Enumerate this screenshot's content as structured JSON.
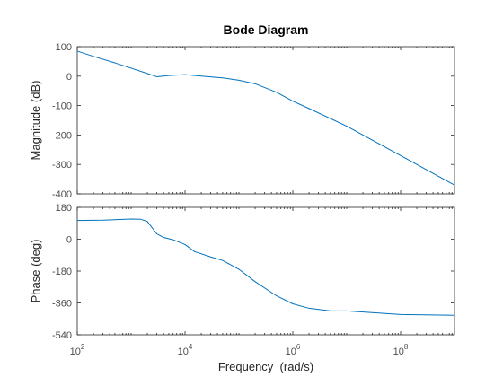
{
  "chart_data": {
    "type": "line",
    "title": "Bode Diagram",
    "xlabel": "Frequency  (rad/s)",
    "xscale": "log",
    "xlim": [
      100,
      1000000000
    ],
    "x_ticks": [
      {
        "base": "10",
        "exp": "2"
      },
      {
        "base": "10",
        "exp": "4"
      },
      {
        "base": "10",
        "exp": "6"
      },
      {
        "base": "10",
        "exp": "8"
      }
    ],
    "line_color": "#0072bd",
    "axes_color": "#262626",
    "tick_label_color": "#4d4d4d",
    "grid": false,
    "panels": [
      {
        "name": "magnitude",
        "ylabel": "Magnitude (dB)",
        "ylim": [
          -400,
          100
        ],
        "y_ticks": [
          "100",
          "0",
          "-100",
          "-200",
          "-300",
          "-400"
        ],
        "series": {
          "x": [
            100,
            200,
            500,
            1000,
            2000,
            3000,
            5000,
            10000,
            20000,
            50000,
            100000,
            200000,
            500000,
            1000000,
            2000000,
            10000000,
            100000000,
            1000000000
          ],
          "y": [
            85,
            67,
            45,
            27,
            9,
            -2,
            2,
            5,
            0,
            -6,
            -14,
            -26,
            -55,
            -85,
            -110,
            -170,
            -270,
            -370
          ]
        }
      },
      {
        "name": "phase",
        "ylabel": "Phase (deg)",
        "ylim": [
          -540,
          180
        ],
        "y_ticks": [
          "180",
          "0",
          "-180",
          "-360",
          "-540"
        ],
        "series": {
          "x": [
            100,
            300,
            1000,
            1500,
            2000,
            3000,
            4000,
            6000,
            10000,
            15000,
            30000,
            50000,
            100000,
            200000,
            500000,
            1000000,
            2000000,
            5000000,
            10000000,
            100000000,
            1000000000
          ],
          "y": [
            106,
            108,
            114,
            113,
            100,
            30,
            10,
            -3,
            -30,
            -70,
            -100,
            -120,
            -170,
            -240,
            -320,
            -365,
            -390,
            -405,
            -405,
            -425,
            -430
          ]
        }
      }
    ]
  }
}
